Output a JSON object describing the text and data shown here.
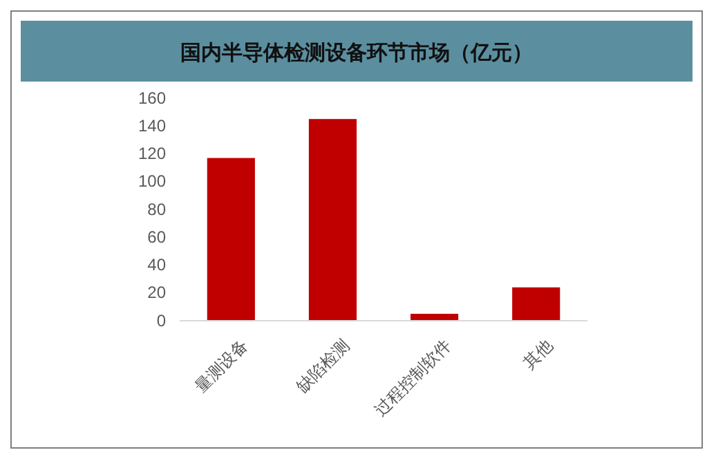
{
  "chart_data": {
    "type": "bar",
    "title": "国内半导体检测设备环节市场（亿元）",
    "categories": [
      "量测设备",
      "缺陷检测",
      "过程控制软件",
      "其他"
    ],
    "values": [
      117,
      145,
      5,
      24
    ],
    "color": "#c00000",
    "ylim": [
      0,
      160
    ],
    "yticks": [
      0,
      20,
      40,
      60,
      80,
      100,
      120,
      140,
      160
    ],
    "grid": false
  }
}
